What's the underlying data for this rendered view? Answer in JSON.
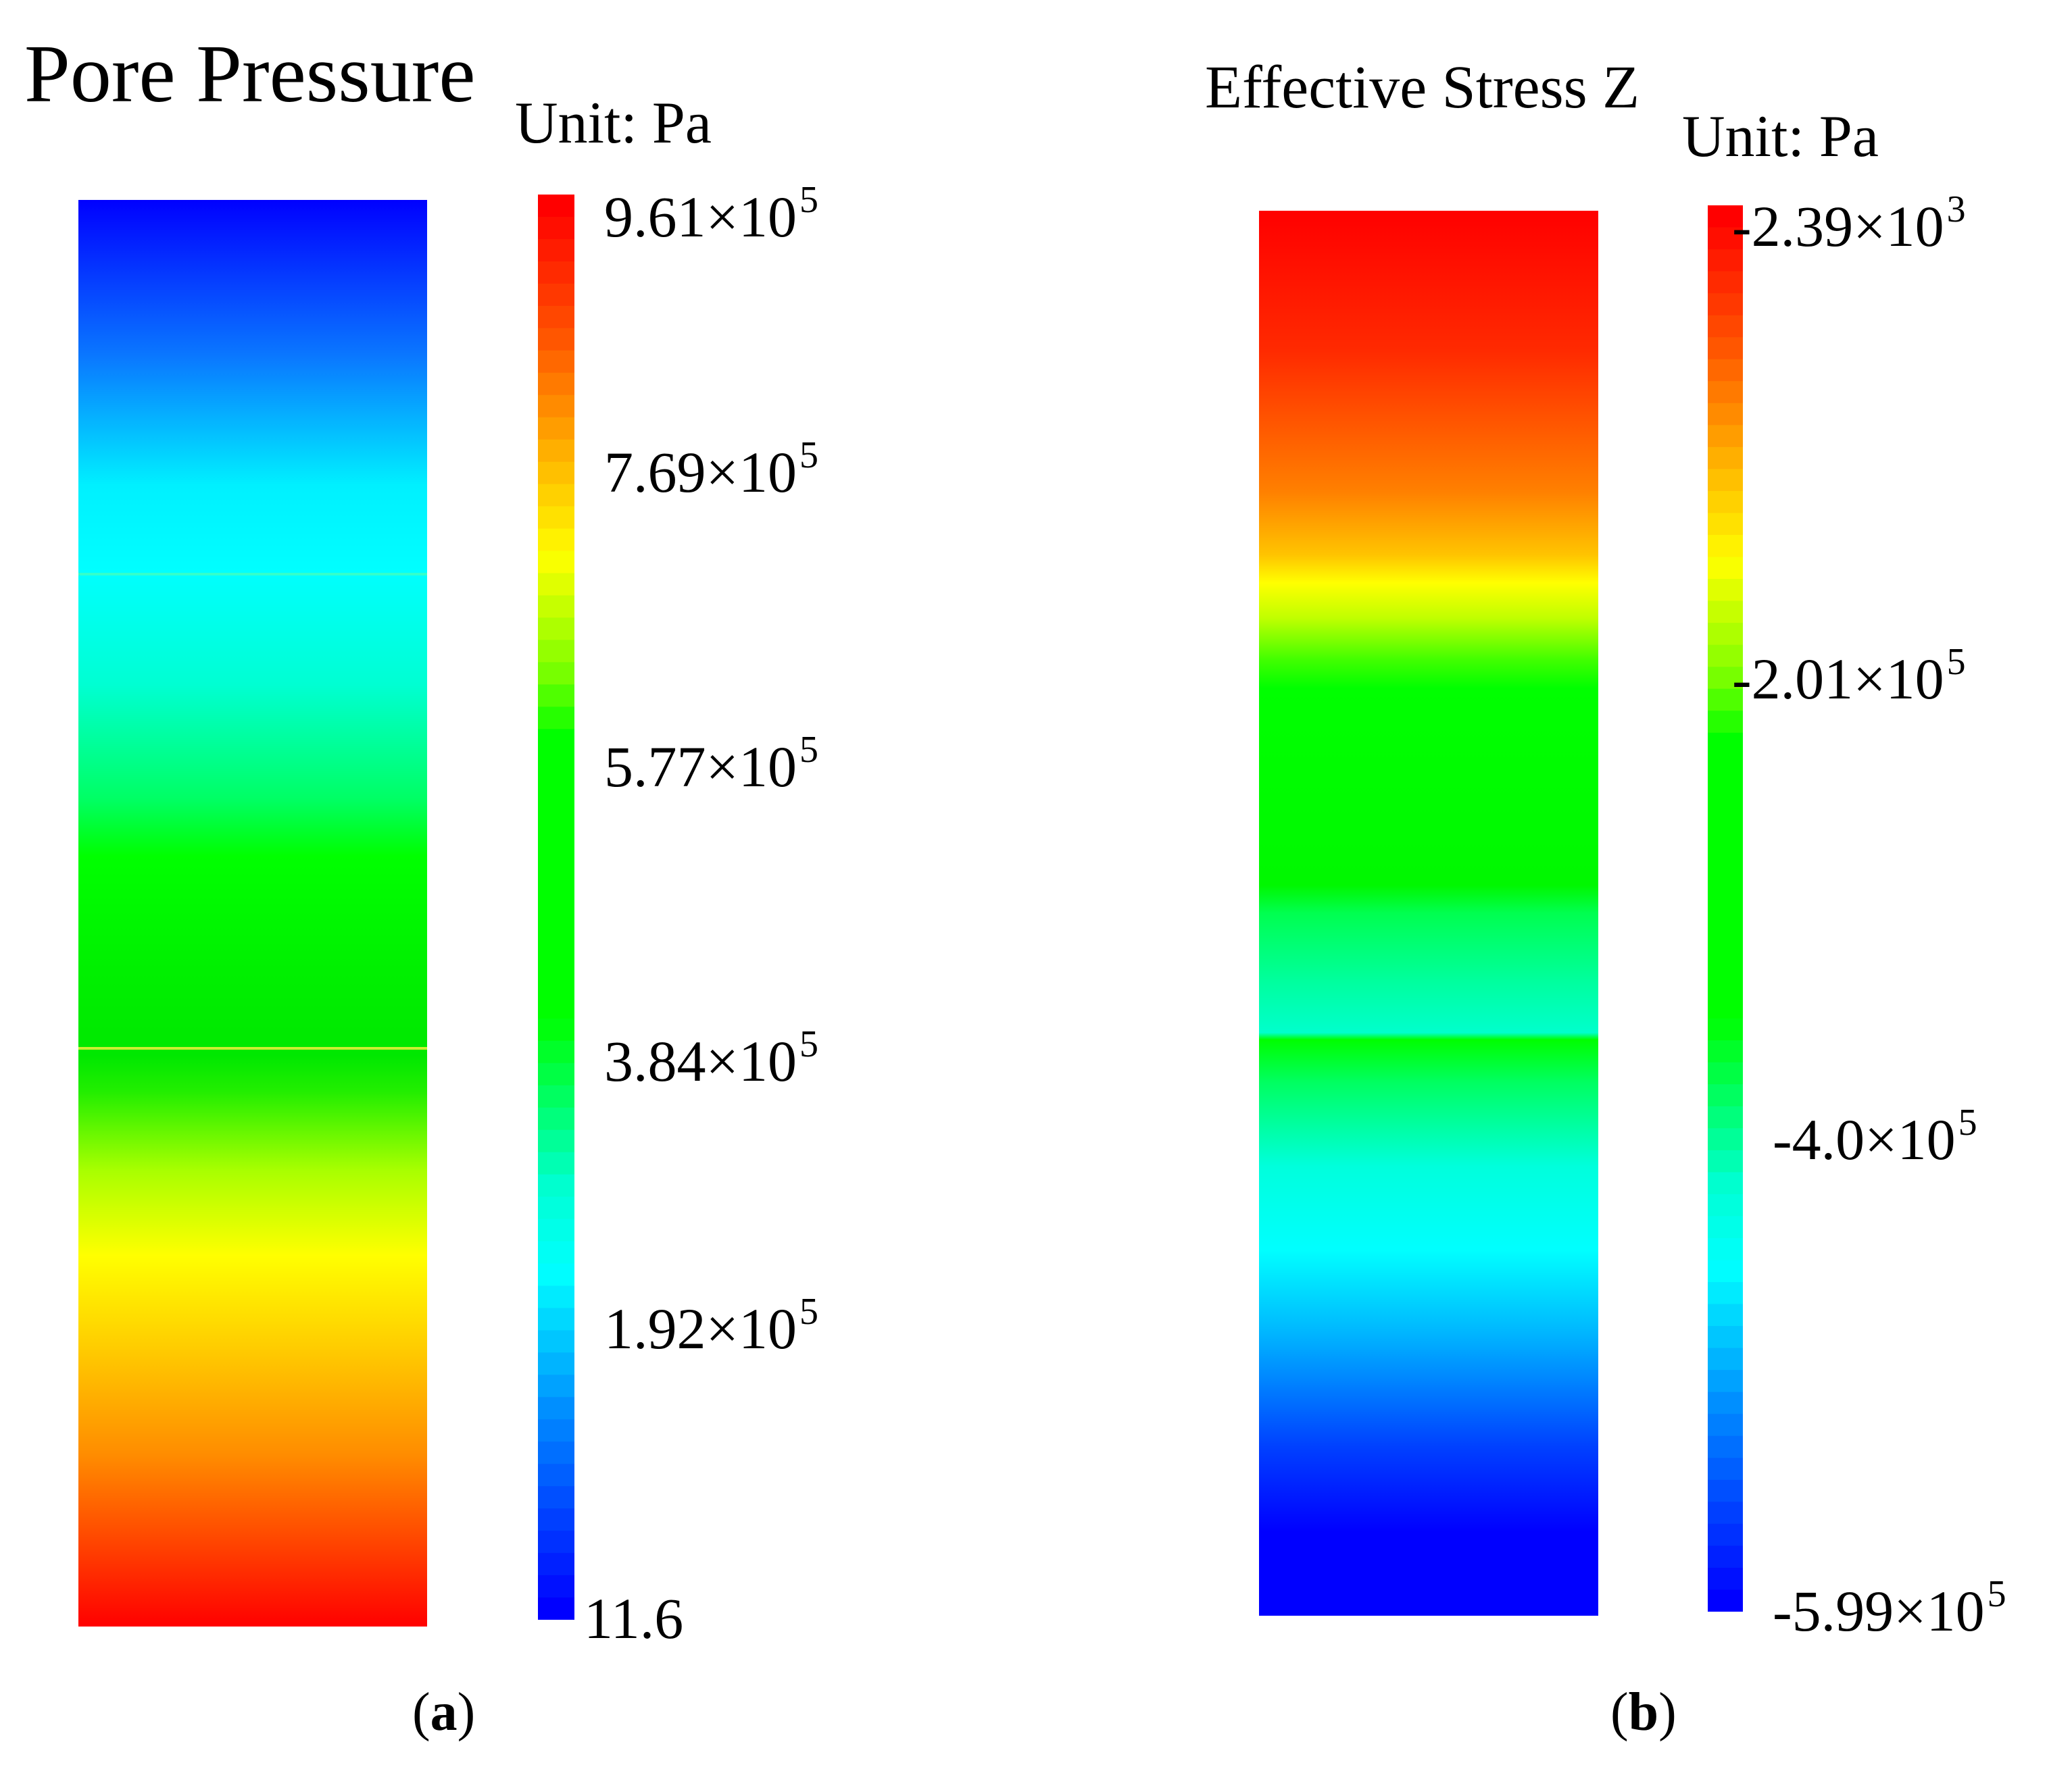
{
  "chart_data": [
    {
      "type": "heatmap",
      "panel": "(a)",
      "title": "Pore Pressure",
      "unit_label": "Unit:  Pa",
      "colorbar": {
        "min": 11.6,
        "max": 961000,
        "colormap": "rainbow (blue to red)",
        "tick_labels": [
          {
            "mantissa": "9.61",
            "exponent": "5",
            "value": 961000
          },
          {
            "mantissa": "7.69",
            "exponent": "5",
            "value": 769000
          },
          {
            "mantissa": "5.77",
            "exponent": "5",
            "value": 577000
          },
          {
            "mantissa": "3.84",
            "exponent": "5",
            "value": 384000
          },
          {
            "mantissa": "1.92",
            "exponent": "5",
            "value": 192000
          },
          {
            "mantissa": "11.6",
            "exponent": "",
            "value": 11.6
          }
        ]
      },
      "depth_profile_note": "low (blue) at top, high (red) at bottom",
      "caption_letter": "a"
    },
    {
      "type": "heatmap",
      "panel": "(b)",
      "title": "Effective Stress Z",
      "unit_label": "Unit:  Pa",
      "colorbar": {
        "min": -599000,
        "max": -2390,
        "colormap": "rainbow (blue to red)",
        "tick_labels": [
          {
            "mantissa": "-2.39",
            "exponent": "3",
            "value": -2390
          },
          {
            "mantissa": "-2.01",
            "exponent": "5",
            "value": -201000
          },
          {
            "mantissa": "-4.0",
            "exponent": "5",
            "value": -400000
          },
          {
            "mantissa": "-5.99",
            "exponent": "5",
            "value": -599000
          }
        ]
      },
      "caption_letter": "b"
    }
  ],
  "colors": {
    "blue": "#0000ff",
    "cyan": "#00ffff",
    "green": "#00ff00",
    "yellow": "#ffff00",
    "orange": "#ff8c00",
    "red": "#ff0000"
  }
}
